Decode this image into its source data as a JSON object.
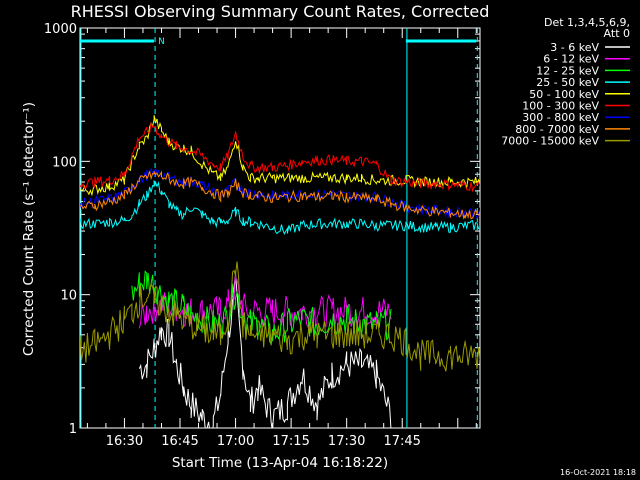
{
  "chart_data": {
    "type": "line",
    "title": "RHESSI Observing Summary Count Rates, Corrected",
    "xlabel": "Start Time (13-Apr-04 16:18:22)",
    "ylabel": "Corrected Count Rate (s⁻¹ detector⁻¹)",
    "yscale": "log",
    "ylim": [
      1,
      1000
    ],
    "xlim_minutes_after_1618": [
      0,
      108
    ],
    "xticks": [
      {
        "label": "16:30",
        "minute": 12
      },
      {
        "label": "16:45",
        "minute": 27
      },
      {
        "label": "17:00",
        "minute": 42
      },
      {
        "label": "17:15",
        "minute": 57
      },
      {
        "label": "17:30",
        "minute": 72
      },
      {
        "label": "17:45",
        "minute": 87
      }
    ],
    "yticks": [
      {
        "label": "1",
        "value": 1
      },
      {
        "label": "10",
        "value": 10
      },
      {
        "label": "100",
        "value": 100
      },
      {
        "label": "1000",
        "value": 1000
      }
    ],
    "legend_placement": "top-right",
    "legend_header": [
      "Det 1,3,4,5,6,9,",
      "Att 0"
    ],
    "footer_date": "16-Oct-2021 18:18",
    "night_marker": "N",
    "x_minutes": [
      0,
      4,
      8,
      12,
      14,
      16,
      18,
      20,
      22,
      24,
      26,
      28,
      30,
      33,
      36,
      38,
      40,
      42,
      44,
      46,
      48,
      52,
      56,
      60,
      64,
      68,
      72,
      76,
      80,
      84,
      88,
      92,
      96,
      100,
      104,
      108
    ],
    "series": [
      {
        "name": "3 - 6 keV",
        "color": "#ffffff",
        "values": [
          null,
          null,
          null,
          null,
          null,
          2.8,
          3,
          4,
          5.5,
          5,
          3,
          2,
          1.5,
          1.2,
          1.1,
          1.8,
          5,
          11,
          3,
          1.5,
          2,
          1.2,
          1.5,
          2.5,
          1.5,
          2.5,
          3,
          3,
          2.5,
          1.2,
          null,
          null,
          null,
          null,
          null,
          null
        ]
      },
      {
        "name": "6 - 12 keV",
        "color": "#ff00ff",
        "values": [
          null,
          null,
          null,
          null,
          null,
          6,
          7.5,
          8,
          8.5,
          8,
          8,
          7.5,
          7.5,
          7.5,
          7.5,
          7.5,
          8.5,
          12,
          8,
          7.5,
          7.5,
          7.5,
          7.5,
          7.5,
          7.5,
          7.5,
          7.5,
          7.5,
          7.5,
          7.5,
          null,
          null,
          null,
          null,
          null,
          null
        ]
      },
      {
        "name": "12 - 25 keV",
        "color": "#00ff00",
        "values": [
          null,
          null,
          null,
          null,
          10,
          12,
          13,
          12,
          10,
          9,
          8.5,
          8,
          7,
          6.5,
          6,
          6,
          7,
          11,
          7,
          6,
          6,
          5,
          6,
          6.5,
          6,
          6.5,
          6.5,
          6,
          6,
          6,
          null,
          null,
          null,
          null,
          null,
          null
        ]
      },
      {
        "name": "25 - 50 keV",
        "color": "#00ffff",
        "values": [
          34,
          34,
          35,
          36,
          40,
          48,
          55,
          70,
          60,
          48,
          42,
          40,
          45,
          40,
          35,
          35,
          36,
          42,
          36,
          35,
          34,
          32,
          30,
          33,
          34,
          34,
          34,
          34,
          33,
          33,
          33,
          32,
          32,
          32,
          33,
          33
        ]
      },
      {
        "name": "50 - 100 keV",
        "color": "#ffff00",
        "values": [
          60,
          62,
          65,
          72,
          100,
          130,
          150,
          210,
          170,
          140,
          130,
          125,
          120,
          95,
          80,
          75,
          90,
          150,
          90,
          75,
          75,
          75,
          75,
          75,
          75,
          75,
          75,
          75,
          72,
          72,
          72,
          70,
          70,
          70,
          70,
          70
        ]
      },
      {
        "name": "100 - 300 keV",
        "color": "#ff0000",
        "values": [
          68,
          70,
          72,
          80,
          110,
          150,
          165,
          185,
          155,
          140,
          130,
          125,
          120,
          110,
          95,
          90,
          110,
          165,
          110,
          92,
          90,
          90,
          93,
          100,
          102,
          102,
          100,
          100,
          95,
          72,
          70,
          68,
          68,
          67,
          66,
          65
        ]
      },
      {
        "name": "300 - 800 keV",
        "color": "#0000ff",
        "values": [
          48,
          50,
          52,
          58,
          66,
          72,
          78,
          82,
          80,
          76,
          72,
          70,
          72,
          66,
          60,
          56,
          60,
          70,
          60,
          58,
          57,
          55,
          56,
          57,
          56,
          57,
          55,
          55,
          54,
          50,
          46,
          44,
          43,
          42,
          42,
          41
        ]
      },
      {
        "name": "800 - 7000 keV",
        "color": "#ff8800",
        "values": [
          45,
          47,
          50,
          55,
          64,
          70,
          76,
          80,
          78,
          74,
          70,
          68,
          70,
          64,
          58,
          55,
          58,
          68,
          58,
          56,
          55,
          53,
          54,
          55,
          54,
          55,
          54,
          53,
          52,
          48,
          45,
          43,
          42,
          41,
          40,
          40
        ]
      },
      {
        "name": "7000 - 15000 keV",
        "color": "#999900",
        "values": [
          3.8,
          4.2,
          5,
          6.5,
          7.5,
          9,
          10,
          9,
          8.5,
          7.5,
          7,
          6.5,
          6,
          5.5,
          5,
          5,
          7,
          17,
          6,
          5,
          5,
          5,
          4.5,
          5,
          5,
          5,
          5,
          5,
          5,
          5,
          4.5,
          3.5,
          3.5,
          3.5,
          3.5,
          3.5
        ]
      }
    ],
    "attenuator_line_color": "#00ffff",
    "saa_night_bars": [
      {
        "start_minute": 0,
        "end_minute": 20
      },
      {
        "start_minute": 88,
        "end_minute": 107
      }
    ],
    "vertical_markers_minutes": [
      {
        "minute": 0,
        "style": "solid"
      },
      {
        "minute": 20,
        "style": "dashed"
      },
      {
        "minute": 88,
        "style": "solid"
      },
      {
        "minute": 107,
        "style": "dashed"
      }
    ]
  }
}
